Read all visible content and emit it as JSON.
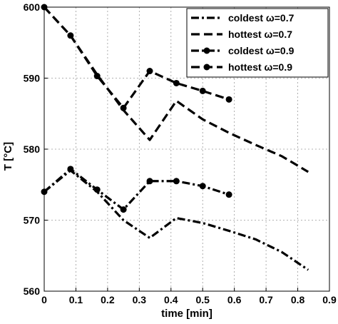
{
  "chart_data": {
    "type": "line",
    "xlabel": "time [min]",
    "ylabel": "T [°C]",
    "xlim": [
      0,
      0.9
    ],
    "ylim": [
      560,
      600
    ],
    "x_ticks": [
      0,
      0.1,
      0.2,
      0.3,
      0.4,
      0.5,
      0.6,
      0.7,
      0.8,
      0.9
    ],
    "y_ticks": [
      560,
      570,
      580,
      590,
      600
    ],
    "grid": true,
    "legend_position": "top-right",
    "series": [
      {
        "name": "coldest  ω=0.7",
        "style": "dashdot",
        "marker": false,
        "x": [
          0,
          0.083,
          0.167,
          0.25,
          0.333,
          0.417,
          0.5,
          0.583,
          0.667,
          0.75,
          0.833
        ],
        "y": [
          574,
          577,
          574,
          570,
          567.5,
          570.3,
          569.6,
          568.5,
          567.3,
          565.5,
          563
        ]
      },
      {
        "name": "hottest  ω=0.7",
        "style": "dashed",
        "marker": false,
        "x": [
          0,
          0.083,
          0.167,
          0.25,
          0.333,
          0.417,
          0.5,
          0.583,
          0.667,
          0.75,
          0.833
        ],
        "y": [
          600,
          596,
          590.5,
          585.5,
          581.3,
          586.8,
          584.2,
          582.3,
          580.6,
          579,
          576.8
        ]
      },
      {
        "name": "coldest  ω=0.9",
        "style": "dashdot",
        "marker": true,
        "x": [
          0,
          0.083,
          0.167,
          0.25,
          0.333,
          0.417,
          0.5,
          0.583
        ],
        "y": [
          574,
          577.2,
          574.3,
          571.5,
          575.5,
          575.5,
          574.8,
          573.6
        ]
      },
      {
        "name": "hottest  ω=0.9",
        "style": "dashed",
        "marker": true,
        "x": [
          0,
          0.083,
          0.167,
          0.25,
          0.333,
          0.417,
          0.5,
          0.583
        ],
        "y": [
          600,
          596,
          590.3,
          585.8,
          591,
          589.3,
          588.2,
          587
        ]
      }
    ]
  }
}
